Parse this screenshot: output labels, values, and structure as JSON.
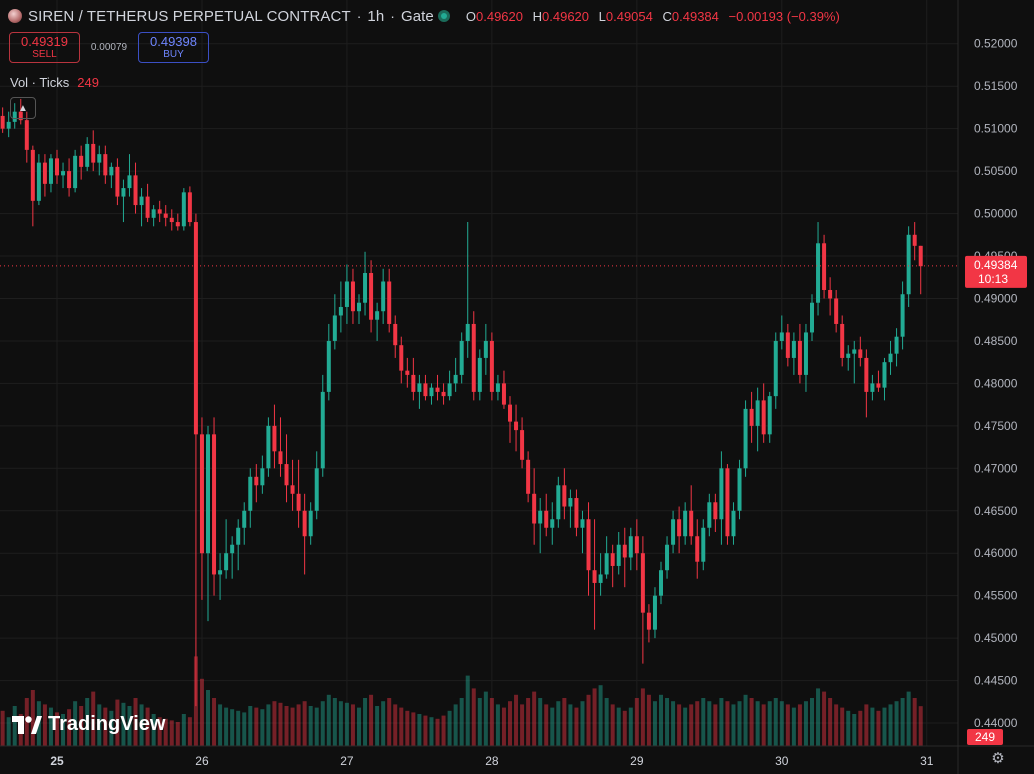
{
  "header": {
    "title": "SIREN / TETHERUS PERPETUAL CONTRACT",
    "interval": "1h",
    "exchange": "Gate",
    "ohlc": {
      "o_label": "O",
      "o": "0.49620",
      "h_label": "H",
      "h": "0.49620",
      "l_label": "L",
      "l": "0.49054",
      "c_label": "C",
      "c": "0.49384",
      "change": "−0.00193 (−0.39%)"
    }
  },
  "trade": {
    "sell_price": "0.49319",
    "sell_label": "SELL",
    "spread": "0.00079",
    "buy_price": "0.49398",
    "buy_label": "BUY"
  },
  "volume_legend": {
    "label": "Vol · Ticks",
    "value": "249"
  },
  "logo": {
    "text": "TradingView"
  },
  "colors": {
    "up": "#22ab94",
    "down": "#f23645",
    "background": "#0f0f0f",
    "grid": "#1e1e1e"
  },
  "chart_data": {
    "type": "candlestick",
    "ylim": [
      0.4393,
      0.5215
    ],
    "y_ticks": [
      "0.52000",
      "0.51500",
      "0.51000",
      "0.50500",
      "0.50000",
      "0.49500",
      "0.49000",
      "0.48500",
      "0.48000",
      "0.47500",
      "0.47000",
      "0.46500",
      "0.46000",
      "0.45500",
      "0.45000",
      "0.44500",
      "0.44000"
    ],
    "x_ticks": [
      {
        "label": "25",
        "t": 0
      },
      {
        "label": "26",
        "t": 24
      },
      {
        "label": "27",
        "t": 48
      },
      {
        "label": "28",
        "t": 72
      },
      {
        "label": "29",
        "t": 96
      },
      {
        "label": "30",
        "t": 120
      },
      {
        "label": "31",
        "t": 144
      }
    ],
    "last_price": {
      "value": "0.49384",
      "price": 0.49384,
      "countdown": "10:13"
    },
    "last_volume": "249",
    "volume_max": 500,
    "candles": [
      [
        -9,
        0.5115,
        0.5125,
        0.5095,
        0.51,
        220
      ],
      [
        -8,
        0.51,
        0.512,
        0.509,
        0.5108,
        180
      ],
      [
        -7,
        0.5108,
        0.513,
        0.51,
        0.512,
        250
      ],
      [
        -6,
        0.512,
        0.5135,
        0.5105,
        0.511,
        200
      ],
      [
        -5,
        0.511,
        0.512,
        0.506,
        0.5075,
        300
      ],
      [
        -4,
        0.5075,
        0.508,
        0.4985,
        0.5015,
        350
      ],
      [
        -3,
        0.5015,
        0.507,
        0.501,
        0.506,
        280
      ],
      [
        -2,
        0.506,
        0.507,
        0.502,
        0.5035,
        260
      ],
      [
        -1,
        0.5035,
        0.507,
        0.5025,
        0.5065,
        240
      ],
      [
        0,
        0.5065,
        0.5075,
        0.5035,
        0.5045,
        210
      ],
      [
        1,
        0.5045,
        0.506,
        0.503,
        0.505,
        200
      ],
      [
        2,
        0.505,
        0.5065,
        0.502,
        0.503,
        230
      ],
      [
        3,
        0.503,
        0.5075,
        0.5025,
        0.5068,
        280
      ],
      [
        4,
        0.5068,
        0.508,
        0.504,
        0.5055,
        250
      ],
      [
        5,
        0.5055,
        0.509,
        0.505,
        0.5082,
        300
      ],
      [
        6,
        0.5082,
        0.5098,
        0.505,
        0.506,
        340
      ],
      [
        7,
        0.506,
        0.508,
        0.5045,
        0.507,
        260
      ],
      [
        8,
        0.507,
        0.508,
        0.5035,
        0.5045,
        240
      ],
      [
        9,
        0.5045,
        0.506,
        0.503,
        0.5055,
        220
      ],
      [
        10,
        0.5055,
        0.5065,
        0.501,
        0.502,
        290
      ],
      [
        11,
        0.502,
        0.504,
        0.499,
        0.503,
        270
      ],
      [
        12,
        0.503,
        0.507,
        0.502,
        0.5045,
        250
      ],
      [
        13,
        0.5045,
        0.506,
        0.5,
        0.501,
        300
      ],
      [
        14,
        0.501,
        0.503,
        0.4985,
        0.502,
        260
      ],
      [
        15,
        0.502,
        0.5035,
        0.499,
        0.4995,
        240
      ],
      [
        16,
        0.4995,
        0.501,
        0.4985,
        0.5005,
        200
      ],
      [
        17,
        0.5005,
        0.5015,
        0.499,
        0.5,
        180
      ],
      [
        18,
        0.5,
        0.501,
        0.4985,
        0.4995,
        170
      ],
      [
        19,
        0.4995,
        0.5005,
        0.498,
        0.499,
        160
      ],
      [
        20,
        0.499,
        0.5,
        0.498,
        0.4985,
        150
      ],
      [
        21,
        0.4985,
        0.503,
        0.498,
        0.5025,
        200
      ],
      [
        22,
        0.5025,
        0.5032,
        0.4985,
        0.499,
        180
      ],
      [
        23,
        0.499,
        0.5,
        0.442,
        0.474,
        560
      ],
      [
        24,
        0.474,
        0.476,
        0.4545,
        0.46,
        420
      ],
      [
        25,
        0.46,
        0.475,
        0.452,
        0.474,
        350
      ],
      [
        26,
        0.474,
        0.476,
        0.455,
        0.4575,
        300
      ],
      [
        27,
        0.4575,
        0.46,
        0.4545,
        0.458,
        260
      ],
      [
        28,
        0.458,
        0.464,
        0.457,
        0.46,
        240
      ],
      [
        29,
        0.46,
        0.462,
        0.457,
        0.461,
        230
      ],
      [
        30,
        0.461,
        0.464,
        0.458,
        0.463,
        220
      ],
      [
        31,
        0.463,
        0.466,
        0.461,
        0.465,
        210
      ],
      [
        32,
        0.465,
        0.47,
        0.463,
        0.469,
        250
      ],
      [
        33,
        0.469,
        0.4705,
        0.466,
        0.468,
        240
      ],
      [
        34,
        0.468,
        0.4715,
        0.467,
        0.47,
        230
      ],
      [
        35,
        0.47,
        0.476,
        0.469,
        0.475,
        260
      ],
      [
        36,
        0.475,
        0.4775,
        0.47,
        0.472,
        280
      ],
      [
        37,
        0.472,
        0.476,
        0.469,
        0.4705,
        270
      ],
      [
        38,
        0.4705,
        0.474,
        0.466,
        0.468,
        250
      ],
      [
        39,
        0.468,
        0.471,
        0.465,
        0.467,
        240
      ],
      [
        40,
        0.467,
        0.471,
        0.463,
        0.465,
        260
      ],
      [
        41,
        0.465,
        0.467,
        0.4575,
        0.462,
        280
      ],
      [
        42,
        0.462,
        0.466,
        0.461,
        0.465,
        250
      ],
      [
        43,
        0.465,
        0.472,
        0.464,
        0.47,
        240
      ],
      [
        44,
        0.47,
        0.481,
        0.469,
        0.479,
        280
      ],
      [
        45,
        0.479,
        0.487,
        0.478,
        0.485,
        320
      ],
      [
        46,
        0.485,
        0.4905,
        0.484,
        0.488,
        300
      ],
      [
        47,
        0.488,
        0.492,
        0.486,
        0.489,
        280
      ],
      [
        48,
        0.489,
        0.494,
        0.487,
        0.492,
        270
      ],
      [
        49,
        0.492,
        0.4935,
        0.487,
        0.4885,
        260
      ],
      [
        50,
        0.4885,
        0.4905,
        0.487,
        0.4895,
        240
      ],
      [
        51,
        0.4895,
        0.4955,
        0.488,
        0.493,
        300
      ],
      [
        52,
        0.493,
        0.4945,
        0.486,
        0.4875,
        320
      ],
      [
        53,
        0.4875,
        0.4895,
        0.485,
        0.4885,
        250
      ],
      [
        54,
        0.4885,
        0.4935,
        0.487,
        0.492,
        280
      ],
      [
        55,
        0.492,
        0.4935,
        0.486,
        0.487,
        300
      ],
      [
        56,
        0.487,
        0.488,
        0.483,
        0.4845,
        260
      ],
      [
        57,
        0.4845,
        0.4855,
        0.48,
        0.4815,
        240
      ],
      [
        58,
        0.4815,
        0.483,
        0.4795,
        0.481,
        220
      ],
      [
        59,
        0.481,
        0.483,
        0.478,
        0.479,
        210
      ],
      [
        60,
        0.479,
        0.481,
        0.477,
        0.48,
        200
      ],
      [
        61,
        0.48,
        0.481,
        0.478,
        0.4785,
        190
      ],
      [
        62,
        0.4785,
        0.48,
        0.4775,
        0.4795,
        180
      ],
      [
        63,
        0.4795,
        0.481,
        0.478,
        0.479,
        170
      ],
      [
        64,
        0.479,
        0.48,
        0.4775,
        0.4785,
        190
      ],
      [
        65,
        0.4785,
        0.4815,
        0.478,
        0.48,
        220
      ],
      [
        66,
        0.48,
        0.483,
        0.479,
        0.481,
        260
      ],
      [
        67,
        0.481,
        0.486,
        0.48,
        0.485,
        300
      ],
      [
        68,
        0.485,
        0.499,
        0.483,
        0.487,
        440
      ],
      [
        69,
        0.487,
        0.4885,
        0.478,
        0.479,
        360
      ],
      [
        70,
        0.479,
        0.484,
        0.478,
        0.483,
        300
      ],
      [
        71,
        0.483,
        0.487,
        0.481,
        0.485,
        340
      ],
      [
        72,
        0.485,
        0.486,
        0.478,
        0.479,
        300
      ],
      [
        73,
        0.479,
        0.481,
        0.478,
        0.48,
        260
      ],
      [
        74,
        0.48,
        0.4815,
        0.477,
        0.4775,
        240
      ],
      [
        75,
        0.4775,
        0.4785,
        0.473,
        0.4755,
        280
      ],
      [
        76,
        0.4755,
        0.4775,
        0.472,
        0.4745,
        320
      ],
      [
        77,
        0.4745,
        0.476,
        0.47,
        0.471,
        260
      ],
      [
        78,
        0.471,
        0.472,
        0.466,
        0.467,
        300
      ],
      [
        79,
        0.467,
        0.47,
        0.461,
        0.4635,
        340
      ],
      [
        80,
        0.4635,
        0.4665,
        0.46,
        0.465,
        300
      ],
      [
        81,
        0.465,
        0.467,
        0.462,
        0.463,
        260
      ],
      [
        82,
        0.463,
        0.466,
        0.461,
        0.464,
        240
      ],
      [
        83,
        0.464,
        0.469,
        0.463,
        0.468,
        280
      ],
      [
        84,
        0.468,
        0.47,
        0.464,
        0.4655,
        300
      ],
      [
        85,
        0.4655,
        0.4675,
        0.463,
        0.4665,
        260
      ],
      [
        86,
        0.4665,
        0.4675,
        0.462,
        0.463,
        240
      ],
      [
        87,
        0.463,
        0.465,
        0.46,
        0.464,
        280
      ],
      [
        88,
        0.464,
        0.466,
        0.455,
        0.458,
        320
      ],
      [
        89,
        0.458,
        0.464,
        0.451,
        0.4565,
        360
      ],
      [
        90,
        0.4565,
        0.46,
        0.455,
        0.4575,
        380
      ],
      [
        91,
        0.4575,
        0.462,
        0.457,
        0.46,
        300
      ],
      [
        92,
        0.46,
        0.461,
        0.456,
        0.4585,
        260
      ],
      [
        93,
        0.4585,
        0.4625,
        0.4575,
        0.461,
        240
      ],
      [
        94,
        0.461,
        0.463,
        0.456,
        0.4595,
        220
      ],
      [
        95,
        0.4595,
        0.463,
        0.458,
        0.462,
        240
      ],
      [
        96,
        0.462,
        0.464,
        0.458,
        0.46,
        300
      ],
      [
        97,
        0.46,
        0.462,
        0.447,
        0.453,
        360
      ],
      [
        98,
        0.453,
        0.454,
        0.4495,
        0.451,
        320
      ],
      [
        99,
        0.451,
        0.456,
        0.45,
        0.455,
        280
      ],
      [
        100,
        0.455,
        0.459,
        0.454,
        0.458,
        320
      ],
      [
        101,
        0.458,
        0.462,
        0.457,
        0.461,
        300
      ],
      [
        102,
        0.461,
        0.465,
        0.46,
        0.464,
        280
      ],
      [
        103,
        0.464,
        0.4655,
        0.46,
        0.462,
        260
      ],
      [
        104,
        0.462,
        0.466,
        0.461,
        0.465,
        240
      ],
      [
        105,
        0.465,
        0.468,
        0.461,
        0.462,
        260
      ],
      [
        106,
        0.462,
        0.464,
        0.457,
        0.459,
        280
      ],
      [
        107,
        0.459,
        0.464,
        0.458,
        0.463,
        300
      ],
      [
        108,
        0.463,
        0.467,
        0.462,
        0.466,
        280
      ],
      [
        109,
        0.466,
        0.467,
        0.4625,
        0.464,
        260
      ],
      [
        110,
        0.464,
        0.472,
        0.461,
        0.47,
        300
      ],
      [
        111,
        0.47,
        0.4705,
        0.461,
        0.462,
        280
      ],
      [
        112,
        0.462,
        0.466,
        0.461,
        0.465,
        260
      ],
      [
        113,
        0.465,
        0.471,
        0.464,
        0.47,
        280
      ],
      [
        114,
        0.47,
        0.478,
        0.469,
        0.477,
        320
      ],
      [
        115,
        0.477,
        0.479,
        0.473,
        0.475,
        300
      ],
      [
        116,
        0.475,
        0.4795,
        0.472,
        0.478,
        280
      ],
      [
        117,
        0.478,
        0.48,
        0.473,
        0.474,
        260
      ],
      [
        118,
        0.474,
        0.479,
        0.473,
        0.4785,
        280
      ],
      [
        119,
        0.4785,
        0.486,
        0.477,
        0.485,
        300
      ],
      [
        120,
        0.485,
        0.488,
        0.484,
        0.486,
        280
      ],
      [
        121,
        0.486,
        0.487,
        0.482,
        0.483,
        260
      ],
      [
        122,
        0.483,
        0.486,
        0.481,
        0.485,
        240
      ],
      [
        123,
        0.485,
        0.487,
        0.48,
        0.481,
        260
      ],
      [
        124,
        0.481,
        0.487,
        0.479,
        0.486,
        280
      ],
      [
        125,
        0.486,
        0.4905,
        0.485,
        0.4895,
        300
      ],
      [
        126,
        0.4895,
        0.499,
        0.488,
        0.4965,
        360
      ],
      [
        127,
        0.4965,
        0.4975,
        0.49,
        0.491,
        340
      ],
      [
        128,
        0.491,
        0.4925,
        0.488,
        0.49,
        300
      ],
      [
        129,
        0.49,
        0.491,
        0.486,
        0.487,
        260
      ],
      [
        130,
        0.487,
        0.488,
        0.482,
        0.483,
        240
      ],
      [
        131,
        0.483,
        0.4845,
        0.4815,
        0.4835,
        220
      ],
      [
        132,
        0.4835,
        0.485,
        0.48,
        0.484,
        200
      ],
      [
        133,
        0.484,
        0.4855,
        0.482,
        0.483,
        220
      ],
      [
        134,
        0.483,
        0.484,
        0.476,
        0.479,
        260
      ],
      [
        135,
        0.479,
        0.481,
        0.478,
        0.48,
        240
      ],
      [
        136,
        0.48,
        0.4815,
        0.479,
        0.4795,
        220
      ],
      [
        137,
        0.4795,
        0.483,
        0.478,
        0.4825,
        240
      ],
      [
        138,
        0.4825,
        0.485,
        0.481,
        0.4835,
        260
      ],
      [
        139,
        0.4835,
        0.4865,
        0.482,
        0.4855,
        280
      ],
      [
        140,
        0.4855,
        0.492,
        0.484,
        0.4905,
        300
      ],
      [
        141,
        0.4905,
        0.4985,
        0.489,
        0.4975,
        340
      ],
      [
        142,
        0.4975,
        0.499,
        0.4945,
        0.4962,
        300
      ],
      [
        143,
        0.4962,
        0.4962,
        0.4905,
        0.4938,
        249
      ]
    ]
  }
}
